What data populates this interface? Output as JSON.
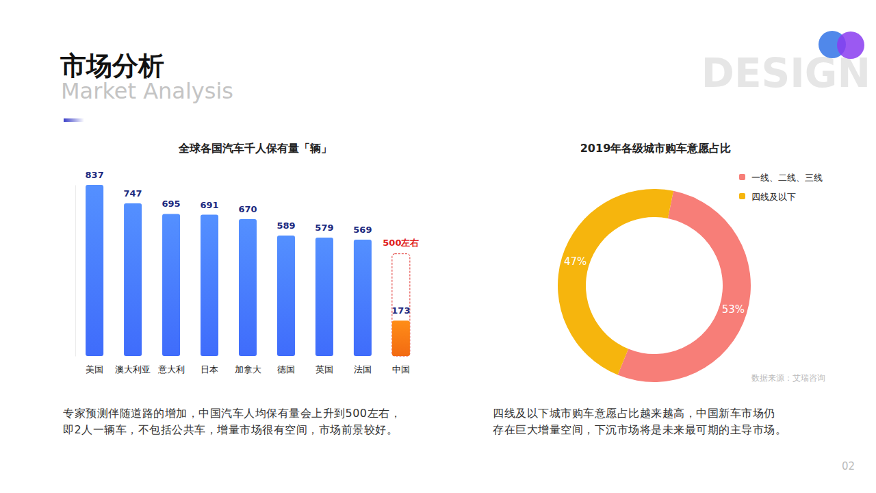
{
  "header": {
    "title": "市场分析",
    "subtitle": "Market Analysis",
    "watermark": "DESIGN"
  },
  "chart_data": [
    {
      "type": "bar",
      "title": "全球各国汽车千人保有量「辆」",
      "categories": [
        "美国",
        "澳大利亚",
        "意大利",
        "日本",
        "加拿大",
        "德国",
        "英国",
        "法国",
        "中国"
      ],
      "values": [
        837,
        747,
        695,
        691,
        670,
        589,
        579,
        569,
        173
      ],
      "colors": [
        "#3f6cfb",
        "#3f6cfb",
        "#3f6cfb",
        "#3f6cfb",
        "#3f6cfb",
        "#3f6cfb",
        "#3f6cfb",
        "#3f6cfb",
        "#f26a12"
      ],
      "ylim": [
        0,
        837
      ],
      "yticks": [
        0,
        837
      ],
      "tick_labels": "x",
      "grid": false,
      "data_labels": true,
      "annotations": [
        {
          "text": "500左右",
          "value": 500,
          "category": "中国"
        }
      ]
    },
    {
      "type": "pie",
      "title": "2019年各级城市购车意愿占比",
      "categories": [
        "一线、二线、三线",
        "四线及以下"
      ],
      "values": [
        53,
        47
      ],
      "value_labels": [
        "53%",
        "47%"
      ],
      "colors": [
        "#f77e78",
        "#f6b50d"
      ],
      "legend": "top-right",
      "data_labels": true,
      "source": "数据来源：艾瑞咨询"
    }
  ],
  "captions": [
    [
      "专家预测伴随道路的增加，中国汽车人均保有量会上升到500左右，",
      "即2人一辆车，不包括公共车，增量市场很有空间，市场前景较好。"
    ],
    [
      "四线及以下城市购车意愿占比越来越高，中国新车市场仍",
      "存在巨大增量空间，下沉市场将是未来最可期的主导市场。"
    ]
  ],
  "page_number": "02"
}
